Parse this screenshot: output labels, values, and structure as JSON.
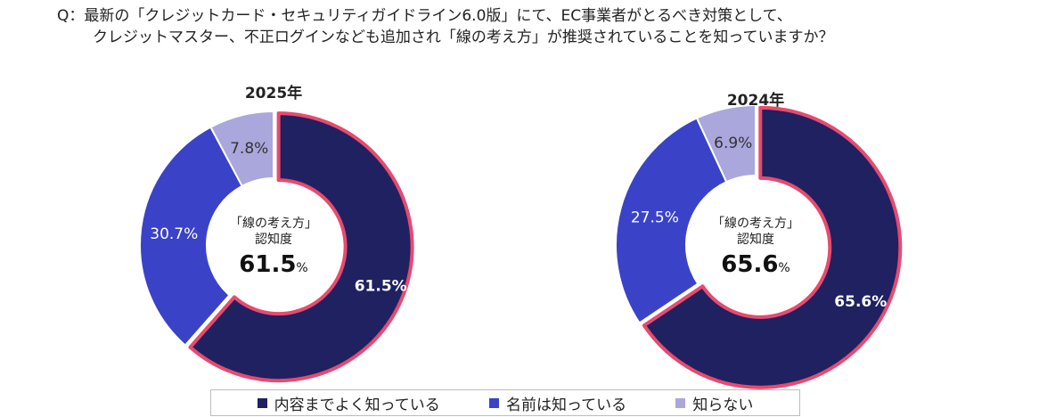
{
  "question": {
    "line1": "Q：最新の「クレジットカード・セキュリティガイドライン6.0版」にて、EC事業者がとるべき対策として、",
    "line2": "クレジットマスター、不正ログインなども追加され「線の考え方」が推奨されていることを知っていますか？"
  },
  "colors": {
    "dark_navy": "#1f2160",
    "blue": "#3a43c8",
    "lavender": "#a9a7db",
    "highlight_border": "#e84a6f"
  },
  "chart_data": [
    {
      "type": "pie",
      "title": "2025年",
      "center_label_line1": "「線の考え方」",
      "center_label_line2": "認知度",
      "center_value": "61.5",
      "center_unit": "%",
      "slices": [
        {
          "name": "内容までよく知っている",
          "value": 61.5,
          "label": "61.5%",
          "color": "#1f2160",
          "highlight": true
        },
        {
          "name": "名前は知っている",
          "value": 30.7,
          "label": "30.7%",
          "color": "#3a43c8"
        },
        {
          "name": "知らない",
          "value": 7.8,
          "label": "7.8%",
          "color": "#a9a7db"
        }
      ]
    },
    {
      "type": "pie",
      "title": "2024年",
      "center_label_line1": "「線の考え方」",
      "center_label_line2": "認知度",
      "center_value": "65.6",
      "center_unit": "%",
      "slices": [
        {
          "name": "内容までよく知っている",
          "value": 65.6,
          "label": "65.6%",
          "color": "#1f2160",
          "highlight": true
        },
        {
          "name": "名前は知っている",
          "value": 27.5,
          "label": "27.5%",
          "color": "#3a43c8"
        },
        {
          "name": "知らない",
          "value": 6.9,
          "label": "6.9%",
          "color": "#a9a7db"
        }
      ]
    }
  ],
  "legend": [
    {
      "label": "内容までよく知っている",
      "color": "#1f2160"
    },
    {
      "label": "名前は知っている",
      "color": "#3a43c8"
    },
    {
      "label": "知らない",
      "color": "#a9a7db"
    }
  ]
}
